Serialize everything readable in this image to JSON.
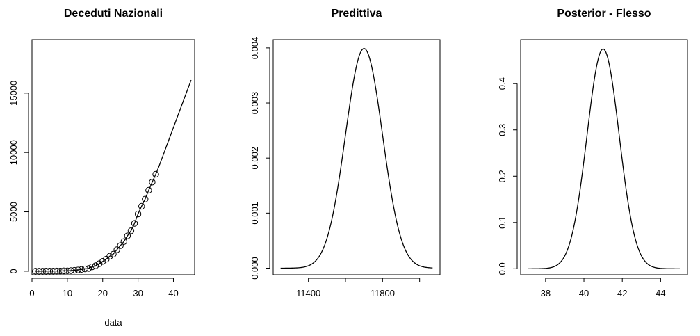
{
  "chart_data": [
    {
      "type": "scatter",
      "title": "Deceduti Nazionali",
      "xlabel": "data",
      "ylabel": "",
      "xlim": [
        0,
        46
      ],
      "ylim": [
        -300,
        19500
      ],
      "xticks": [
        0,
        10,
        20,
        30,
        40
      ],
      "xtick_labels": [
        "0",
        "10",
        "20",
        "30",
        "40"
      ],
      "yticks": [
        0,
        5000,
        10000,
        15000
      ],
      "ytick_labels": [
        "0",
        "5000",
        "10000",
        "15000"
      ],
      "grid": false,
      "series": [
        {
          "style": "points",
          "x": [
            1,
            2,
            3,
            4,
            5,
            6,
            7,
            8,
            9,
            10,
            11,
            12,
            13,
            14,
            15,
            16,
            17,
            18,
            19,
            20,
            21,
            22,
            23,
            24,
            25,
            26,
            27,
            28,
            29,
            30,
            31,
            32,
            33,
            34,
            35
          ],
          "values": [
            1,
            2,
            3,
            7,
            10,
            12,
            17,
            21,
            29,
            34,
            52,
            79,
            107,
            148,
            197,
            233,
            366,
            463,
            631,
            827,
            1016,
            1266,
            1441,
            1809,
            2158,
            2503,
            2978,
            3405,
            4032,
            4825,
            5476,
            6077,
            6820,
            7503,
            8165
          ]
        },
        {
          "style": "line",
          "x": [
            1,
            2,
            3,
            4,
            5,
            6,
            7,
            8,
            9,
            10,
            11,
            12,
            13,
            14,
            15,
            16,
            17,
            18,
            19,
            20,
            21,
            22,
            23,
            24,
            25,
            26,
            27,
            28,
            29,
            30,
            31,
            32,
            33,
            34,
            35,
            36,
            37,
            38,
            39,
            40,
            41,
            42,
            43,
            44,
            45
          ],
          "values": [
            1,
            2,
            3,
            7,
            10,
            12,
            17,
            21,
            29,
            34,
            52,
            79,
            107,
            148,
            197,
            233,
            366,
            463,
            631,
            827,
            1016,
            1266,
            1441,
            1809,
            2158,
            2503,
            2978,
            3405,
            4032,
            4825,
            5476,
            6077,
            6820,
            7503,
            8165,
            8900,
            9700,
            10500,
            11300,
            12100,
            12900,
            13700,
            14500,
            15300,
            16100
          ]
        }
      ]
    },
    {
      "type": "line",
      "title": "Predittiva",
      "xlabel": "",
      "ylabel": "",
      "xlim": [
        11210,
        12110
      ],
      "ylim": [
        -0.00012,
        0.00415
      ],
      "xticks": [
        11400,
        11600,
        11800,
        12000
      ],
      "xtick_labels": [
        "11400",
        "",
        "11800",
        ""
      ],
      "yticks": [
        0,
        0.001,
        0.002,
        0.003,
        0.004
      ],
      "ytick_labels": [
        "0.000",
        "0.001",
        "0.002",
        "0.003",
        "0.004"
      ],
      "grid": false,
      "series": [
        {
          "distribution": "normal",
          "mean": 11700,
          "sd": 100,
          "x_range": [
            11250,
            12070
          ]
        }
      ]
    },
    {
      "type": "line",
      "title": "Posterior - Flesso",
      "xlabel": "",
      "ylabel": "",
      "xlim": [
        36.7,
        45.4
      ],
      "ylim": [
        -0.013,
        0.495
      ],
      "xticks": [
        38,
        40,
        42,
        44
      ],
      "xtick_labels": [
        "38",
        "40",
        "42",
        "44"
      ],
      "yticks": [
        0,
        0.1,
        0.2,
        0.3,
        0.4
      ],
      "ytick_labels": [
        "0.0",
        "0.1",
        "0.2",
        "0.3",
        "0.4"
      ],
      "grid": false,
      "series": [
        {
          "distribution": "normal",
          "mean": 41,
          "sd": 0.84,
          "x_range": [
            37.1,
            45
          ]
        }
      ]
    }
  ]
}
